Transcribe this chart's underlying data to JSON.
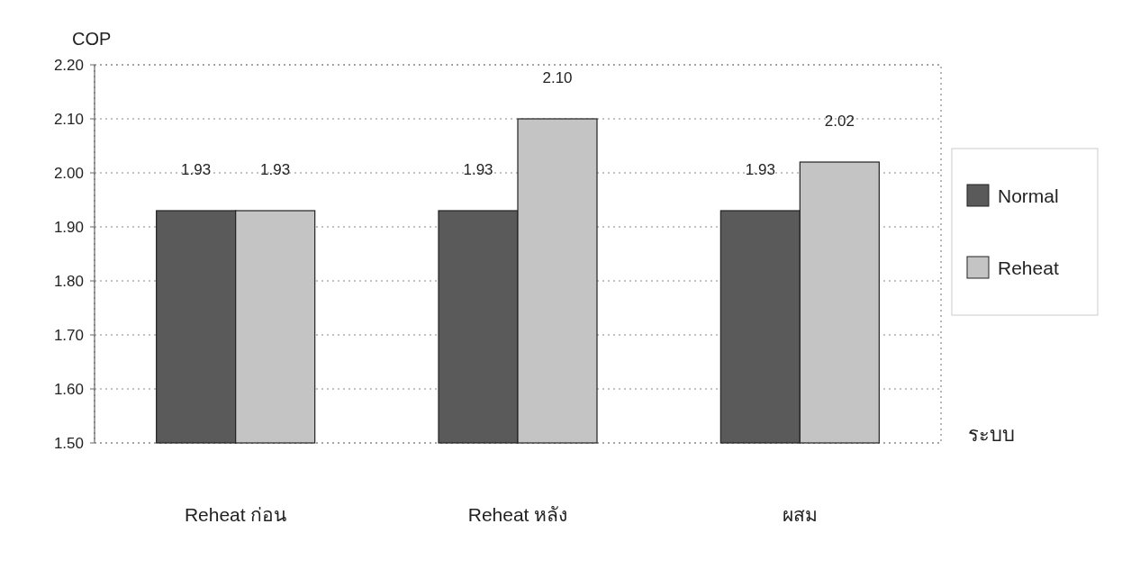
{
  "chart_data": {
    "type": "bar",
    "ylabel": "COP",
    "xlabel": "ระบบ",
    "categories": [
      "Reheat ก่อน",
      "Reheat หลัง",
      "ผสม"
    ],
    "series": [
      {
        "name": "Normal",
        "color": "#5a5a5a",
        "values": [
          1.93,
          1.93,
          1.93
        ],
        "value_labels": [
          "1.93",
          "1.93",
          "1.93"
        ]
      },
      {
        "name": "Reheat",
        "color": "#c4c4c4",
        "values": [
          1.93,
          2.1,
          2.02
        ],
        "value_labels": [
          "1.93",
          "2.10",
          "2.02"
        ]
      }
    ],
    "ylim": [
      1.5,
      2.2
    ],
    "yticks": [
      {
        "value": 1.5,
        "label": "1.50"
      },
      {
        "value": 1.6,
        "label": "1.60"
      },
      {
        "value": 1.7,
        "label": "1.70"
      },
      {
        "value": 1.8,
        "label": "1.80"
      },
      {
        "value": 1.9,
        "label": "1.90"
      },
      {
        "value": 2.0,
        "label": "2.00"
      },
      {
        "value": 2.1,
        "label": "2.10"
      },
      {
        "value": 2.2,
        "label": "2.20"
      }
    ],
    "grid": "y",
    "legend": "right"
  }
}
